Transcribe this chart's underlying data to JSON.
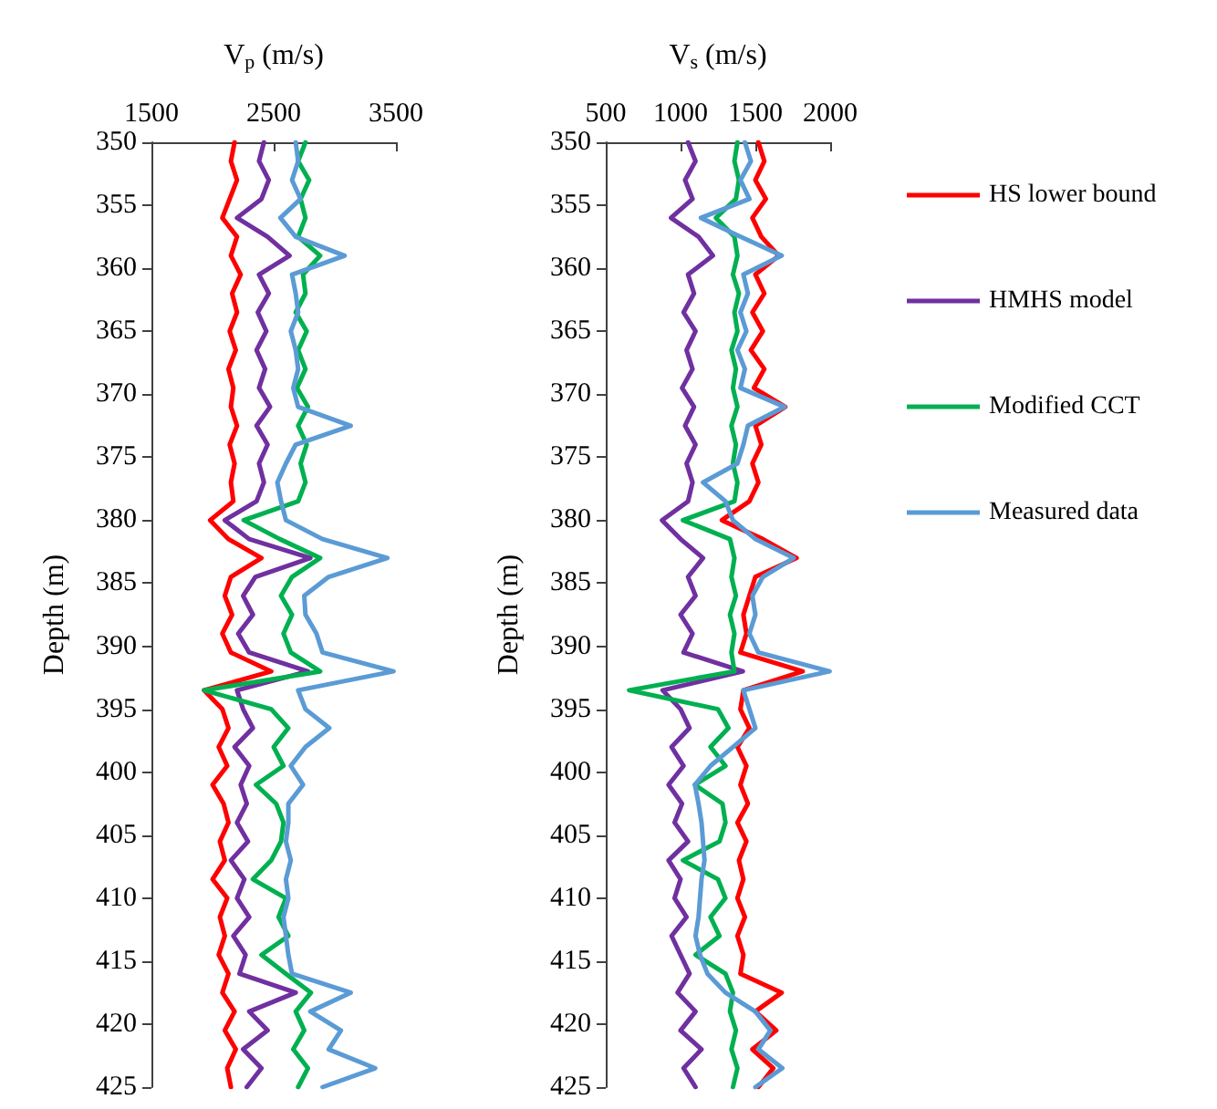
{
  "chart_data": [
    {
      "type": "line",
      "xlabel": "V$_{p}$ (m/s)",
      "ylabel": "Depth (m)",
      "xlim": [
        1500,
        3500
      ],
      "xticks": [
        1500,
        2500,
        3500
      ],
      "ylim": [
        425,
        350
      ],
      "yticks": [
        350,
        355,
        360,
        365,
        370,
        375,
        380,
        385,
        390,
        395,
        400,
        405,
        410,
        415,
        420,
        425
      ],
      "marker": "none",
      "line_style": "solid",
      "series": [
        {
          "color": "#ff0000",
          "x": [
            2180,
            2150,
            2200,
            2140,
            2080,
            2200,
            2150,
            2230,
            2160,
            2200,
            2140,
            2190,
            2130,
            2170,
            2150,
            2200,
            2140,
            2180,
            2150,
            2170,
            1980,
            2130,
            2400,
            2150,
            2100,
            2160,
            2080,
            2150,
            2480,
            1930,
            2080,
            2130,
            2050,
            2120,
            2000,
            2090,
            2130,
            2060,
            2100,
            2000,
            2120,
            2060,
            2100,
            2050,
            2130,
            2080,
            2180,
            2100,
            2190,
            2120,
            2150
          ],
          "values": [
            350,
            351.5,
            353,
            354.5,
            356,
            357.5,
            359,
            360.5,
            362,
            363.5,
            365,
            366.5,
            368,
            369.5,
            371,
            372.5,
            374,
            375.5,
            377,
            378.5,
            380,
            381.5,
            383,
            384.5,
            386,
            387.5,
            389,
            390.5,
            392,
            393.5,
            395,
            396.5,
            398,
            399.5,
            401,
            402.5,
            404,
            405.5,
            407,
            408.5,
            410,
            411.5,
            413,
            414.5,
            416,
            417.5,
            419,
            420.5,
            422,
            423.5,
            425
          ]
        },
        {
          "color": "#7030a0",
          "x": [
            2420,
            2380,
            2460,
            2400,
            2200,
            2450,
            2630,
            2380,
            2460,
            2370,
            2440,
            2360,
            2430,
            2380,
            2470,
            2360,
            2450,
            2380,
            2420,
            2360,
            2100,
            2300,
            2800,
            2350,
            2250,
            2330,
            2210,
            2300,
            2780,
            2200,
            2250,
            2330,
            2180,
            2300,
            2230,
            2280,
            2200,
            2290,
            2150,
            2260,
            2200,
            2300,
            2170,
            2270,
            2220,
            2680,
            2300,
            2450,
            2250,
            2400,
            2280
          ],
          "values": [
            350,
            351.5,
            353,
            354.5,
            356,
            357.5,
            359,
            360.5,
            362,
            363.5,
            365,
            366.5,
            368,
            369.5,
            371,
            372.5,
            374,
            375.5,
            377,
            378.5,
            380,
            381.5,
            383,
            384.5,
            386,
            387.5,
            389,
            390.5,
            392,
            393.5,
            395,
            396.5,
            398,
            399.5,
            401,
            402.5,
            404,
            405.5,
            407,
            408.5,
            410,
            411.5,
            413,
            414.5,
            416,
            417.5,
            419,
            420.5,
            422,
            423.5,
            425
          ]
        },
        {
          "color": "#00b050",
          "x": [
            2760,
            2700,
            2790,
            2720,
            2760,
            2700,
            2880,
            2740,
            2760,
            2680,
            2770,
            2700,
            2760,
            2690,
            2780,
            2700,
            2770,
            2720,
            2760,
            2700,
            2255,
            2550,
            2880,
            2650,
            2560,
            2650,
            2580,
            2640,
            2880,
            1930,
            2480,
            2620,
            2500,
            2580,
            2355,
            2520,
            2580,
            2560,
            2480,
            2330,
            2600,
            2540,
            2620,
            2400,
            2600,
            2805,
            2680,
            2750,
            2660,
            2780,
            2700
          ],
          "values": [
            350,
            351.5,
            353,
            354.5,
            356,
            357.5,
            359,
            360.5,
            362,
            363.5,
            365,
            366.5,
            368,
            369.5,
            371,
            372.5,
            374,
            375.5,
            377,
            378.5,
            380,
            381.5,
            383,
            384.5,
            386,
            387.5,
            389,
            390.5,
            392,
            393.5,
            395,
            396.5,
            398,
            399.5,
            401,
            402.5,
            404,
            405.5,
            407,
            408.5,
            410,
            411.5,
            413,
            414.5,
            416,
            417.5,
            419,
            420.5,
            422,
            423.5,
            425
          ]
        },
        {
          "color": "#5b9bd5",
          "x": [
            2680,
            2700,
            2650,
            2720,
            2555,
            2680,
            3080,
            2650,
            2680,
            2700,
            2640,
            2680,
            2700,
            2660,
            2700,
            3130,
            2680,
            2600,
            2530,
            2560,
            2600,
            2900,
            3430,
            2950,
            2750,
            2760,
            2850,
            2900,
            3480,
            2700,
            2760,
            2955,
            2760,
            2640,
            2740,
            2620,
            2620,
            2600,
            2640,
            2600,
            2620,
            2580,
            2600,
            2620,
            2650,
            3130,
            2800,
            3050,
            2950,
            3330,
            2900
          ],
          "values": [
            350,
            351.5,
            353,
            354.5,
            356,
            357.5,
            359,
            360.5,
            362,
            363.5,
            365,
            366.5,
            368,
            369.5,
            371,
            372.5,
            374,
            375.5,
            377,
            378.5,
            380,
            381.5,
            383,
            384.5,
            386,
            387.5,
            389,
            390.5,
            392,
            393.5,
            395,
            396.5,
            398,
            399.5,
            401,
            402.5,
            404,
            405.5,
            407,
            408.5,
            410,
            411.5,
            413,
            414.5,
            416,
            417.5,
            419,
            420.5,
            422,
            423.5,
            425
          ]
        }
      ]
    },
    {
      "type": "line",
      "xlabel": "V$_{s}$ (m/s)",
      "ylabel": "Depth (m)",
      "xlim": [
        500,
        2000
      ],
      "xticks": [
        500,
        1000,
        1500,
        2000
      ],
      "ylim": [
        425,
        350
      ],
      "yticks": [
        350,
        355,
        360,
        365,
        370,
        375,
        380,
        385,
        390,
        395,
        400,
        405,
        410,
        415,
        420,
        425
      ],
      "marker": "none",
      "line_style": "solid",
      "legend": "right",
      "series": [
        {
          "name": "HS lower bound",
          "color": "#ff0000",
          "x": [
            1520,
            1560,
            1500,
            1570,
            1480,
            1540,
            1656,
            1500,
            1560,
            1480,
            1550,
            1470,
            1560,
            1490,
            1700,
            1500,
            1540,
            1480,
            1520,
            1460,
            1276,
            1550,
            1776,
            1500,
            1460,
            1420,
            1440,
            1400,
            1816,
            1420,
            1400,
            1460,
            1380,
            1440,
            1400,
            1450,
            1380,
            1440,
            1390,
            1420,
            1380,
            1430,
            1380,
            1420,
            1400,
            1676,
            1500,
            1640,
            1480,
            1620,
            1520
          ],
          "values": [
            350,
            351.5,
            353,
            354.5,
            356,
            357.5,
            359,
            360.5,
            362,
            363.5,
            365,
            366.5,
            368,
            369.5,
            371,
            372.5,
            374,
            375.5,
            377,
            378.5,
            380,
            381.5,
            383,
            384.5,
            386,
            387.5,
            389,
            390.5,
            392,
            393.5,
            395,
            396.5,
            398,
            399.5,
            401,
            402.5,
            404,
            405.5,
            407,
            408.5,
            410,
            411.5,
            413,
            414.5,
            416,
            417.5,
            419,
            420.5,
            422,
            423.5,
            425
          ]
        },
        {
          "name": "HMHS model",
          "color": "#7030a0",
          "x": [
            1050,
            1100,
            1030,
            1080,
            936,
            1120,
            1216,
            1050,
            1090,
            1020,
            1100,
            1040,
            1080,
            1010,
            1090,
            1030,
            1100,
            1040,
            1080,
            1050,
            876,
            1000,
            1150,
            1050,
            1100,
            1000,
            1080,
            1020,
            1416,
            880,
            1000,
            1060,
            940,
            1020,
            920,
            1010,
            960,
            1050,
            920,
            1000,
            960,
            1040,
            940,
            1000,
            1060,
            980,
            1100,
            1000,
            1140,
            1020,
            1100
          ],
          "values": [
            350,
            351.5,
            353,
            354.5,
            356,
            357.5,
            359,
            360.5,
            362,
            363.5,
            365,
            366.5,
            368,
            369.5,
            371,
            372.5,
            374,
            375.5,
            377,
            378.5,
            380,
            381.5,
            383,
            384.5,
            386,
            387.5,
            389,
            390.5,
            392,
            393.5,
            395,
            396.5,
            398,
            399.5,
            401,
            402.5,
            404,
            405.5,
            407,
            408.5,
            410,
            411.5,
            413,
            414.5,
            416,
            417.5,
            419,
            420.5,
            422,
            423.5,
            425
          ]
        },
        {
          "name": "Modified CCT",
          "color": "#00b050",
          "x": [
            1380,
            1360,
            1390,
            1370,
            1236,
            1360,
            1380,
            1350,
            1390,
            1360,
            1380,
            1340,
            1370,
            1350,
            1380,
            1340,
            1370,
            1350,
            1380,
            1360,
            1016,
            1330,
            1360,
            1340,
            1370,
            1330,
            1360,
            1340,
            1360,
            656,
            1250,
            1320,
            1200,
            1300,
            1096,
            1280,
            1300,
            1260,
            1016,
            1250,
            1300,
            1200,
            1260,
            1100,
            1300,
            1350,
            1330,
            1370,
            1340,
            1380,
            1350
          ],
          "values": [
            350,
            351.5,
            353,
            354.5,
            356,
            357.5,
            359,
            360.5,
            362,
            363.5,
            365,
            366.5,
            368,
            369.5,
            371,
            372.5,
            374,
            375.5,
            377,
            378.5,
            380,
            381.5,
            383,
            384.5,
            386,
            387.5,
            389,
            390.5,
            392,
            393.5,
            395,
            396.5,
            398,
            399.5,
            401,
            402.5,
            404,
            405.5,
            407,
            408.5,
            410,
            411.5,
            413,
            414.5,
            416,
            417.5,
            419,
            420.5,
            422,
            423.5,
            425
          ]
        },
        {
          "name": "Measured data",
          "color": "#5b9bd5",
          "x": [
            1430,
            1470,
            1400,
            1460,
            1136,
            1400,
            1676,
            1420,
            1450,
            1400,
            1440,
            1380,
            1430,
            1400,
            1696,
            1450,
            1420,
            1380,
            1150,
            1300,
            1350,
            1500,
            1756,
            1550,
            1480,
            1500,
            1460,
            1520,
            1996,
            1420,
            1460,
            1500,
            1350,
            1200,
            1096,
            1120,
            1140,
            1150,
            1160,
            1140,
            1130,
            1120,
            1100,
            1130,
            1180,
            1300,
            1500,
            1600,
            1520,
            1680,
            1500
          ],
          "values": [
            350,
            351.5,
            353,
            354.5,
            356,
            357.5,
            359,
            360.5,
            362,
            363.5,
            365,
            366.5,
            368,
            369.5,
            371,
            372.5,
            374,
            375.5,
            377,
            378.5,
            380,
            381.5,
            383,
            384.5,
            386,
            387.5,
            389,
            390.5,
            392,
            393.5,
            395,
            396.5,
            398,
            399.5,
            401,
            402.5,
            404,
            405.5,
            407,
            408.5,
            410,
            411.5,
            413,
            414.5,
            416,
            417.5,
            419,
            420.5,
            422,
            423.5,
            425
          ]
        }
      ]
    }
  ]
}
